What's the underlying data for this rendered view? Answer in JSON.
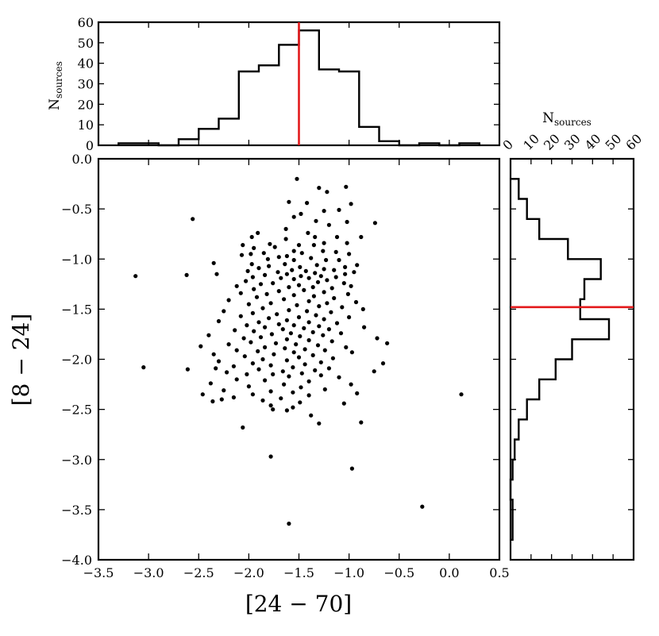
{
  "chart_data": [
    {
      "id": "scatter",
      "type": "scatter",
      "xlabel": "[24 − 70]",
      "ylabel": "[8 − 24]",
      "xlim": [
        -3.5,
        0.5
      ],
      "ylim": [
        -4.0,
        0.0
      ],
      "xticks": [
        -3.5,
        -3.0,
        -2.5,
        -2.0,
        -1.5,
        -1.0,
        -0.5,
        0.0,
        0.5
      ],
      "xtick_labels": [
        "−3.5",
        "−3.0",
        "−2.5",
        "−2.0",
        "−1.5",
        "−1.0",
        "−0.5",
        "0.0",
        "0.5"
      ],
      "yticks": [
        0.0,
        -0.5,
        -1.0,
        -1.5,
        -2.0,
        -2.5,
        -3.0,
        -3.5,
        -4.0
      ],
      "ytick_labels": [
        "0.0",
        "−0.5",
        "−1.0",
        "−1.5",
        "−2.0",
        "−2.5",
        "−3.0",
        "−3.5",
        "−4.0"
      ],
      "points": [
        [
          -1.52,
          -0.2
        ],
        [
          -1.03,
          -0.28
        ],
        [
          -1.3,
          -0.29
        ],
        [
          -1.22,
          -0.33
        ],
        [
          -1.6,
          -0.43
        ],
        [
          -1.42,
          -0.44
        ],
        [
          -0.98,
          -0.45
        ],
        [
          -1.1,
          -0.51
        ],
        [
          -1.25,
          -0.52
        ],
        [
          -1.48,
          -0.55
        ],
        [
          -1.55,
          -0.58
        ],
        [
          -2.56,
          -0.6
        ],
        [
          -1.33,
          -0.62
        ],
        [
          -1.02,
          -0.63
        ],
        [
          -0.74,
          -0.64
        ],
        [
          -1.2,
          -0.66
        ],
        [
          -1.63,
          -0.7
        ],
        [
          -1.91,
          -0.74
        ],
        [
          -1.41,
          -0.74
        ],
        [
          -1.97,
          -0.78
        ],
        [
          -1.34,
          -0.78
        ],
        [
          -1.12,
          -0.78
        ],
        [
          -0.88,
          -0.78
        ],
        [
          -1.63,
          -0.8
        ],
        [
          -1.25,
          -0.84
        ],
        [
          -1.02,
          -0.84
        ],
        [
          -1.79,
          -0.85
        ],
        [
          -2.06,
          -0.86
        ],
        [
          -1.5,
          -0.86
        ],
        [
          -1.35,
          -0.86
        ],
        [
          -1.74,
          -0.88
        ],
        [
          -1.95,
          -0.89
        ],
        [
          -1.26,
          -0.92
        ],
        [
          -1.55,
          -0.92
        ],
        [
          -1.13,
          -0.93
        ],
        [
          -1.85,
          -0.94
        ],
        [
          -1.47,
          -0.94
        ],
        [
          -1.98,
          -0.95
        ],
        [
          -1.0,
          -0.95
        ],
        [
          -2.07,
          -0.96
        ],
        [
          -1.62,
          -0.97
        ],
        [
          -1.7,
          -0.98
        ],
        [
          -1.38,
          -0.99
        ],
        [
          -1.81,
          -1.0
        ],
        [
          -1.55,
          -1.01
        ],
        [
          -1.1,
          -1.01
        ],
        [
          -1.23,
          -1.01
        ],
        [
          -2.35,
          -1.04
        ],
        [
          -1.97,
          -1.05
        ],
        [
          -1.64,
          -1.05
        ],
        [
          -1.32,
          -1.06
        ],
        [
          -0.92,
          -1.06
        ],
        [
          -1.8,
          -1.07
        ],
        [
          -1.49,
          -1.08
        ],
        [
          -1.04,
          -1.08
        ],
        [
          -1.9,
          -1.09
        ],
        [
          -1.25,
          -1.1
        ],
        [
          -1.57,
          -1.11
        ],
        [
          -1.15,
          -1.11
        ],
        [
          -2.01,
          -1.12
        ],
        [
          -1.43,
          -1.12
        ],
        [
          -1.71,
          -1.13
        ],
        [
          -0.95,
          -1.13
        ],
        [
          -1.34,
          -1.14
        ],
        [
          -1.62,
          -1.15
        ],
        [
          -1.04,
          -1.15
        ],
        [
          -3.13,
          -1.17
        ],
        [
          -2.62,
          -1.16
        ],
        [
          -2.32,
          -1.15
        ],
        [
          -1.84,
          -1.16
        ],
        [
          -1.48,
          -1.17
        ],
        [
          -1.28,
          -1.17
        ],
        [
          -1.96,
          -1.18
        ],
        [
          -1.13,
          -1.18
        ],
        [
          -1.4,
          -1.19
        ],
        [
          -1.68,
          -1.19
        ],
        [
          -1.55,
          -1.2
        ],
        [
          -1.22,
          -1.21
        ],
        [
          -2.03,
          -1.22
        ],
        [
          -1.31,
          -1.23
        ],
        [
          -1.76,
          -1.24
        ],
        [
          -1.05,
          -1.24
        ],
        [
          -1.88,
          -1.25
        ],
        [
          -1.5,
          -1.26
        ],
        [
          -2.12,
          -1.27
        ],
        [
          -0.98,
          -1.27
        ],
        [
          -1.6,
          -1.28
        ],
        [
          -1.36,
          -1.28
        ],
        [
          -1.17,
          -1.29
        ],
        [
          -1.95,
          -1.3
        ],
        [
          -1.45,
          -1.31
        ],
        [
          -1.7,
          -1.32
        ],
        [
          -1.25,
          -1.33
        ],
        [
          -2.08,
          -1.34
        ],
        [
          -1.82,
          -1.35
        ],
        [
          -1.01,
          -1.35
        ],
        [
          -1.55,
          -1.36
        ],
        [
          -1.35,
          -1.37
        ],
        [
          -1.92,
          -1.38
        ],
        [
          -1.15,
          -1.39
        ],
        [
          -1.65,
          -1.4
        ],
        [
          -2.2,
          -1.41
        ],
        [
          -1.4,
          -1.42
        ],
        [
          -0.93,
          -1.43
        ],
        [
          -1.78,
          -1.44
        ],
        [
          -1.22,
          -1.44
        ],
        [
          -2.0,
          -1.45
        ],
        [
          -1.52,
          -1.46
        ],
        [
          -1.3,
          -1.47
        ],
        [
          -1.07,
          -1.48
        ],
        [
          -1.86,
          -1.49
        ],
        [
          -0.86,
          -1.5
        ],
        [
          -1.6,
          -1.51
        ],
        [
          -2.25,
          -1.52
        ],
        [
          -1.42,
          -1.52
        ],
        [
          -1.18,
          -1.53
        ],
        [
          -1.96,
          -1.54
        ],
        [
          -1.72,
          -1.55
        ],
        [
          -1.33,
          -1.56
        ],
        [
          -2.08,
          -1.57
        ],
        [
          -1.5,
          -1.58
        ],
        [
          -1.0,
          -1.58
        ],
        [
          -1.8,
          -1.59
        ],
        [
          -1.25,
          -1.6
        ],
        [
          -1.62,
          -1.61
        ],
        [
          -2.3,
          -1.62
        ],
        [
          -1.9,
          -1.63
        ],
        [
          -1.4,
          -1.63
        ],
        [
          -1.12,
          -1.64
        ],
        [
          -1.7,
          -1.65
        ],
        [
          -1.55,
          -1.66
        ],
        [
          -2.02,
          -1.66
        ],
        [
          -1.3,
          -1.67
        ],
        [
          -1.84,
          -1.68
        ],
        [
          -0.85,
          -1.68
        ],
        [
          -1.45,
          -1.69
        ],
        [
          -1.2,
          -1.7
        ],
        [
          -1.66,
          -1.7
        ],
        [
          -2.14,
          -1.71
        ],
        [
          -1.95,
          -1.72
        ],
        [
          -1.36,
          -1.73
        ],
        [
          -1.58,
          -1.74
        ],
        [
          -1.08,
          -1.74
        ],
        [
          -1.77,
          -1.75
        ],
        [
          -2.4,
          -1.76
        ],
        [
          -1.26,
          -1.76
        ],
        [
          -1.49,
          -1.77
        ],
        [
          -1.88,
          -1.78
        ],
        [
          -2.05,
          -1.79
        ],
        [
          -1.62,
          -1.8
        ],
        [
          -0.72,
          -1.79
        ],
        [
          -1.4,
          -1.81
        ],
        [
          -1.17,
          -1.82
        ],
        [
          -1.98,
          -1.83
        ],
        [
          -1.73,
          -1.84
        ],
        [
          -0.62,
          -1.84
        ],
        [
          -2.2,
          -1.85
        ],
        [
          -1.53,
          -1.85
        ],
        [
          -1.31,
          -1.86
        ],
        [
          -2.48,
          -1.87
        ],
        [
          -1.84,
          -1.88
        ],
        [
          -1.03,
          -1.88
        ],
        [
          -1.64,
          -1.89
        ],
        [
          -1.44,
          -1.9
        ],
        [
          -2.12,
          -1.91
        ],
        [
          -1.24,
          -1.91
        ],
        [
          -1.91,
          -1.92
        ],
        [
          -1.55,
          -1.93
        ],
        [
          -0.97,
          -1.93
        ],
        [
          -2.35,
          -1.95
        ],
        [
          -1.75,
          -1.95
        ],
        [
          -1.36,
          -1.96
        ],
        [
          -2.04,
          -1.97
        ],
        [
          -1.5,
          -1.98
        ],
        [
          -1.16,
          -1.99
        ],
        [
          -1.86,
          -2.0
        ],
        [
          -1.62,
          -2.01
        ],
        [
          -2.3,
          -2.02
        ],
        [
          -1.28,
          -2.03
        ],
        [
          -1.96,
          -2.04
        ],
        [
          -0.66,
          -2.04
        ],
        [
          -1.44,
          -2.05
        ],
        [
          -1.78,
          -2.06
        ],
        [
          -2.15,
          -2.07
        ],
        [
          -3.05,
          -2.08
        ],
        [
          -1.56,
          -2.08
        ],
        [
          -2.33,
          -2.09
        ],
        [
          -1.2,
          -2.09
        ],
        [
          -2.61,
          -2.1
        ],
        [
          -1.9,
          -2.1
        ],
        [
          -1.34,
          -2.11
        ],
        [
          -1.66,
          -2.12
        ],
        [
          -2.22,
          -2.13
        ],
        [
          -1.47,
          -2.14
        ],
        [
          -1.76,
          -2.15
        ],
        [
          -2.02,
          -2.15
        ],
        [
          -1.28,
          -2.16
        ],
        [
          -0.75,
          -2.12
        ],
        [
          -1.6,
          -2.17
        ],
        [
          -1.1,
          -2.18
        ],
        [
          -2.12,
          -2.2
        ],
        [
          -1.84,
          -2.21
        ],
        [
          -1.4,
          -2.22
        ],
        [
          -2.38,
          -2.24
        ],
        [
          -1.65,
          -2.25
        ],
        [
          -0.98,
          -2.25
        ],
        [
          -2.0,
          -2.27
        ],
        [
          -1.48,
          -2.28
        ],
        [
          -1.24,
          -2.3
        ],
        [
          -2.25,
          -2.31
        ],
        [
          -1.78,
          -2.32
        ],
        [
          -1.56,
          -2.33
        ],
        [
          -0.92,
          -2.34
        ],
        [
          -2.46,
          -2.35
        ],
        [
          -1.96,
          -2.35
        ],
        [
          -1.4,
          -2.36
        ],
        [
          0.12,
          -2.35
        ],
        [
          -2.15,
          -2.38
        ],
        [
          -1.68,
          -2.39
        ],
        [
          -2.27,
          -2.4
        ],
        [
          -1.86,
          -2.41
        ],
        [
          -2.36,
          -2.42
        ],
        [
          -1.49,
          -2.43
        ],
        [
          -1.05,
          -2.44
        ],
        [
          -1.78,
          -2.46
        ],
        [
          -1.56,
          -2.48
        ],
        [
          -1.76,
          -2.5
        ],
        [
          -1.62,
          -2.51
        ],
        [
          -1.38,
          -2.56
        ],
        [
          -1.3,
          -2.64
        ],
        [
          -0.88,
          -2.63
        ],
        [
          -2.06,
          -2.68
        ],
        [
          -1.78,
          -2.97
        ],
        [
          -0.97,
          -3.09
        ],
        [
          -0.27,
          -3.47
        ],
        [
          -1.6,
          -3.64
        ]
      ]
    },
    {
      "id": "top-histogram",
      "type": "histogram",
      "ylabel_main": "N",
      "ylabel_sub": "sources",
      "ylim": [
        0,
        60
      ],
      "yticks": [
        0,
        10,
        20,
        30,
        40,
        50,
        60
      ],
      "bin_edges": [
        -3.3,
        -3.1,
        -2.9,
        -2.7,
        -2.5,
        -2.3,
        -2.1,
        -1.9,
        -1.7,
        -1.5,
        -1.3,
        -1.1,
        -0.9,
        -0.7,
        -0.5,
        -0.3,
        -0.1,
        0.1,
        0.3
      ],
      "counts": [
        1,
        1,
        0,
        3,
        8,
        13,
        36,
        39,
        49,
        56,
        37,
        36,
        9,
        2,
        0,
        1,
        0,
        1
      ],
      "median": -1.5
    },
    {
      "id": "right-histogram",
      "type": "histogram",
      "orientation": "horizontal",
      "xlabel_main": "N",
      "xlabel_sub": "sources",
      "xlim": [
        0,
        60
      ],
      "xticks": [
        0,
        10,
        20,
        30,
        40,
        50,
        60
      ],
      "bin_edges": [
        -0.2,
        -0.4,
        -0.6,
        -0.8,
        -1.0,
        -1.2,
        -1.4,
        -1.6,
        -1.8,
        -2.0,
        -2.2,
        -2.4,
        -2.6,
        -2.8,
        -3.0,
        -3.2,
        -3.4,
        -3.6,
        -3.8
      ],
      "counts": [
        4,
        8,
        14,
        28,
        44,
        36,
        34,
        48,
        30,
        22,
        14,
        8,
        4,
        2,
        1,
        0,
        1,
        1
      ],
      "median": -1.48
    }
  ],
  "colors": {
    "median_line": "#e31a1c",
    "ink": "#000000"
  }
}
